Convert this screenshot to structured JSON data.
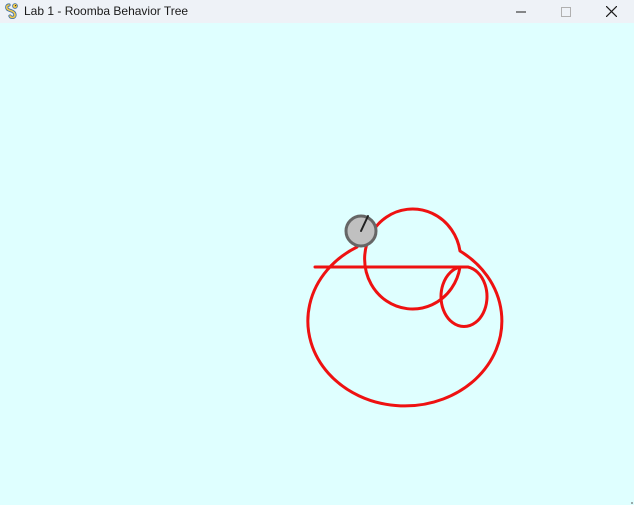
{
  "window": {
    "title": "Lab 1 - Roomba Behavior Tree",
    "app_icon": "pygame-snake-icon",
    "controls": {
      "minimize_icon": "minimize-icon",
      "maximize_icon": "maximize-icon",
      "close_icon": "close-icon"
    }
  },
  "canvas": {
    "background_color": "#dfffff",
    "trail_color": "#ee1111",
    "roomba": {
      "body_color": "#c0c0c0",
      "outline_color": "#666666",
      "heading_color": "#222222"
    }
  }
}
